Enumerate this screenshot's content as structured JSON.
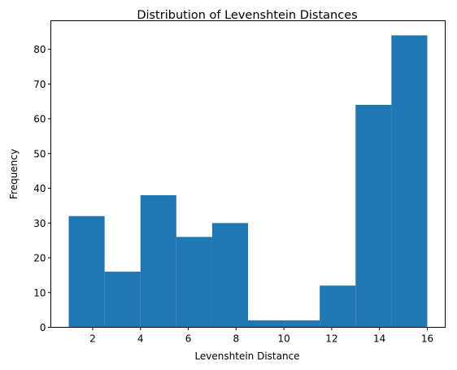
{
  "chart_data": {
    "type": "bar",
    "title": "Distribution of Levenshtein Distances",
    "xlabel": "Levenshtein Distance",
    "ylabel": "Frequency",
    "bin_edges": [
      1,
      2.5,
      4,
      5.5,
      7,
      8.5,
      10,
      11.5,
      13,
      14.5,
      16
    ],
    "values": [
      32,
      16,
      38,
      26,
      30,
      2,
      2,
      12,
      64,
      84
    ],
    "xlim": [
      0.25,
      16.75
    ],
    "ylim": [
      0,
      88.2
    ],
    "xticks": [
      2,
      4,
      6,
      8,
      10,
      12,
      14,
      16
    ],
    "yticks": [
      0,
      10,
      20,
      30,
      40,
      50,
      60,
      70,
      80
    ],
    "bar_color": "#1f77b4",
    "grid": false
  }
}
